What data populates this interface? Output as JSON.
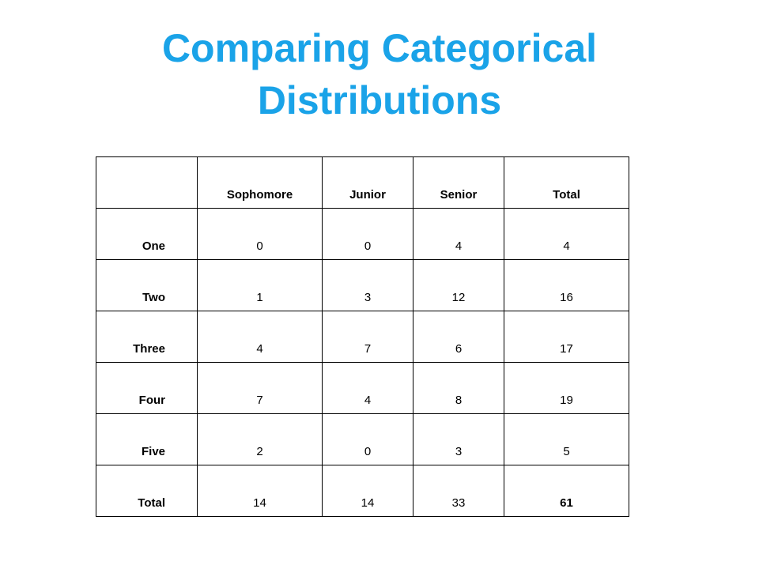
{
  "title": "Comparing Categorical Distributions",
  "table": {
    "header": [
      "Sophomore",
      "Junior",
      "Senior",
      "Total"
    ],
    "rows": [
      {
        "label": "One",
        "cells": [
          0,
          0,
          4,
          4
        ]
      },
      {
        "label": "Two",
        "cells": [
          1,
          3,
          12,
          16
        ]
      },
      {
        "label": "Three",
        "cells": [
          4,
          7,
          6,
          17
        ]
      },
      {
        "label": "Four",
        "cells": [
          7,
          4,
          8,
          19
        ]
      },
      {
        "label": "Five",
        "cells": [
          2,
          0,
          3,
          5
        ]
      },
      {
        "label": "Total",
        "cells": [
          14,
          14,
          33,
          61
        ]
      }
    ]
  }
}
